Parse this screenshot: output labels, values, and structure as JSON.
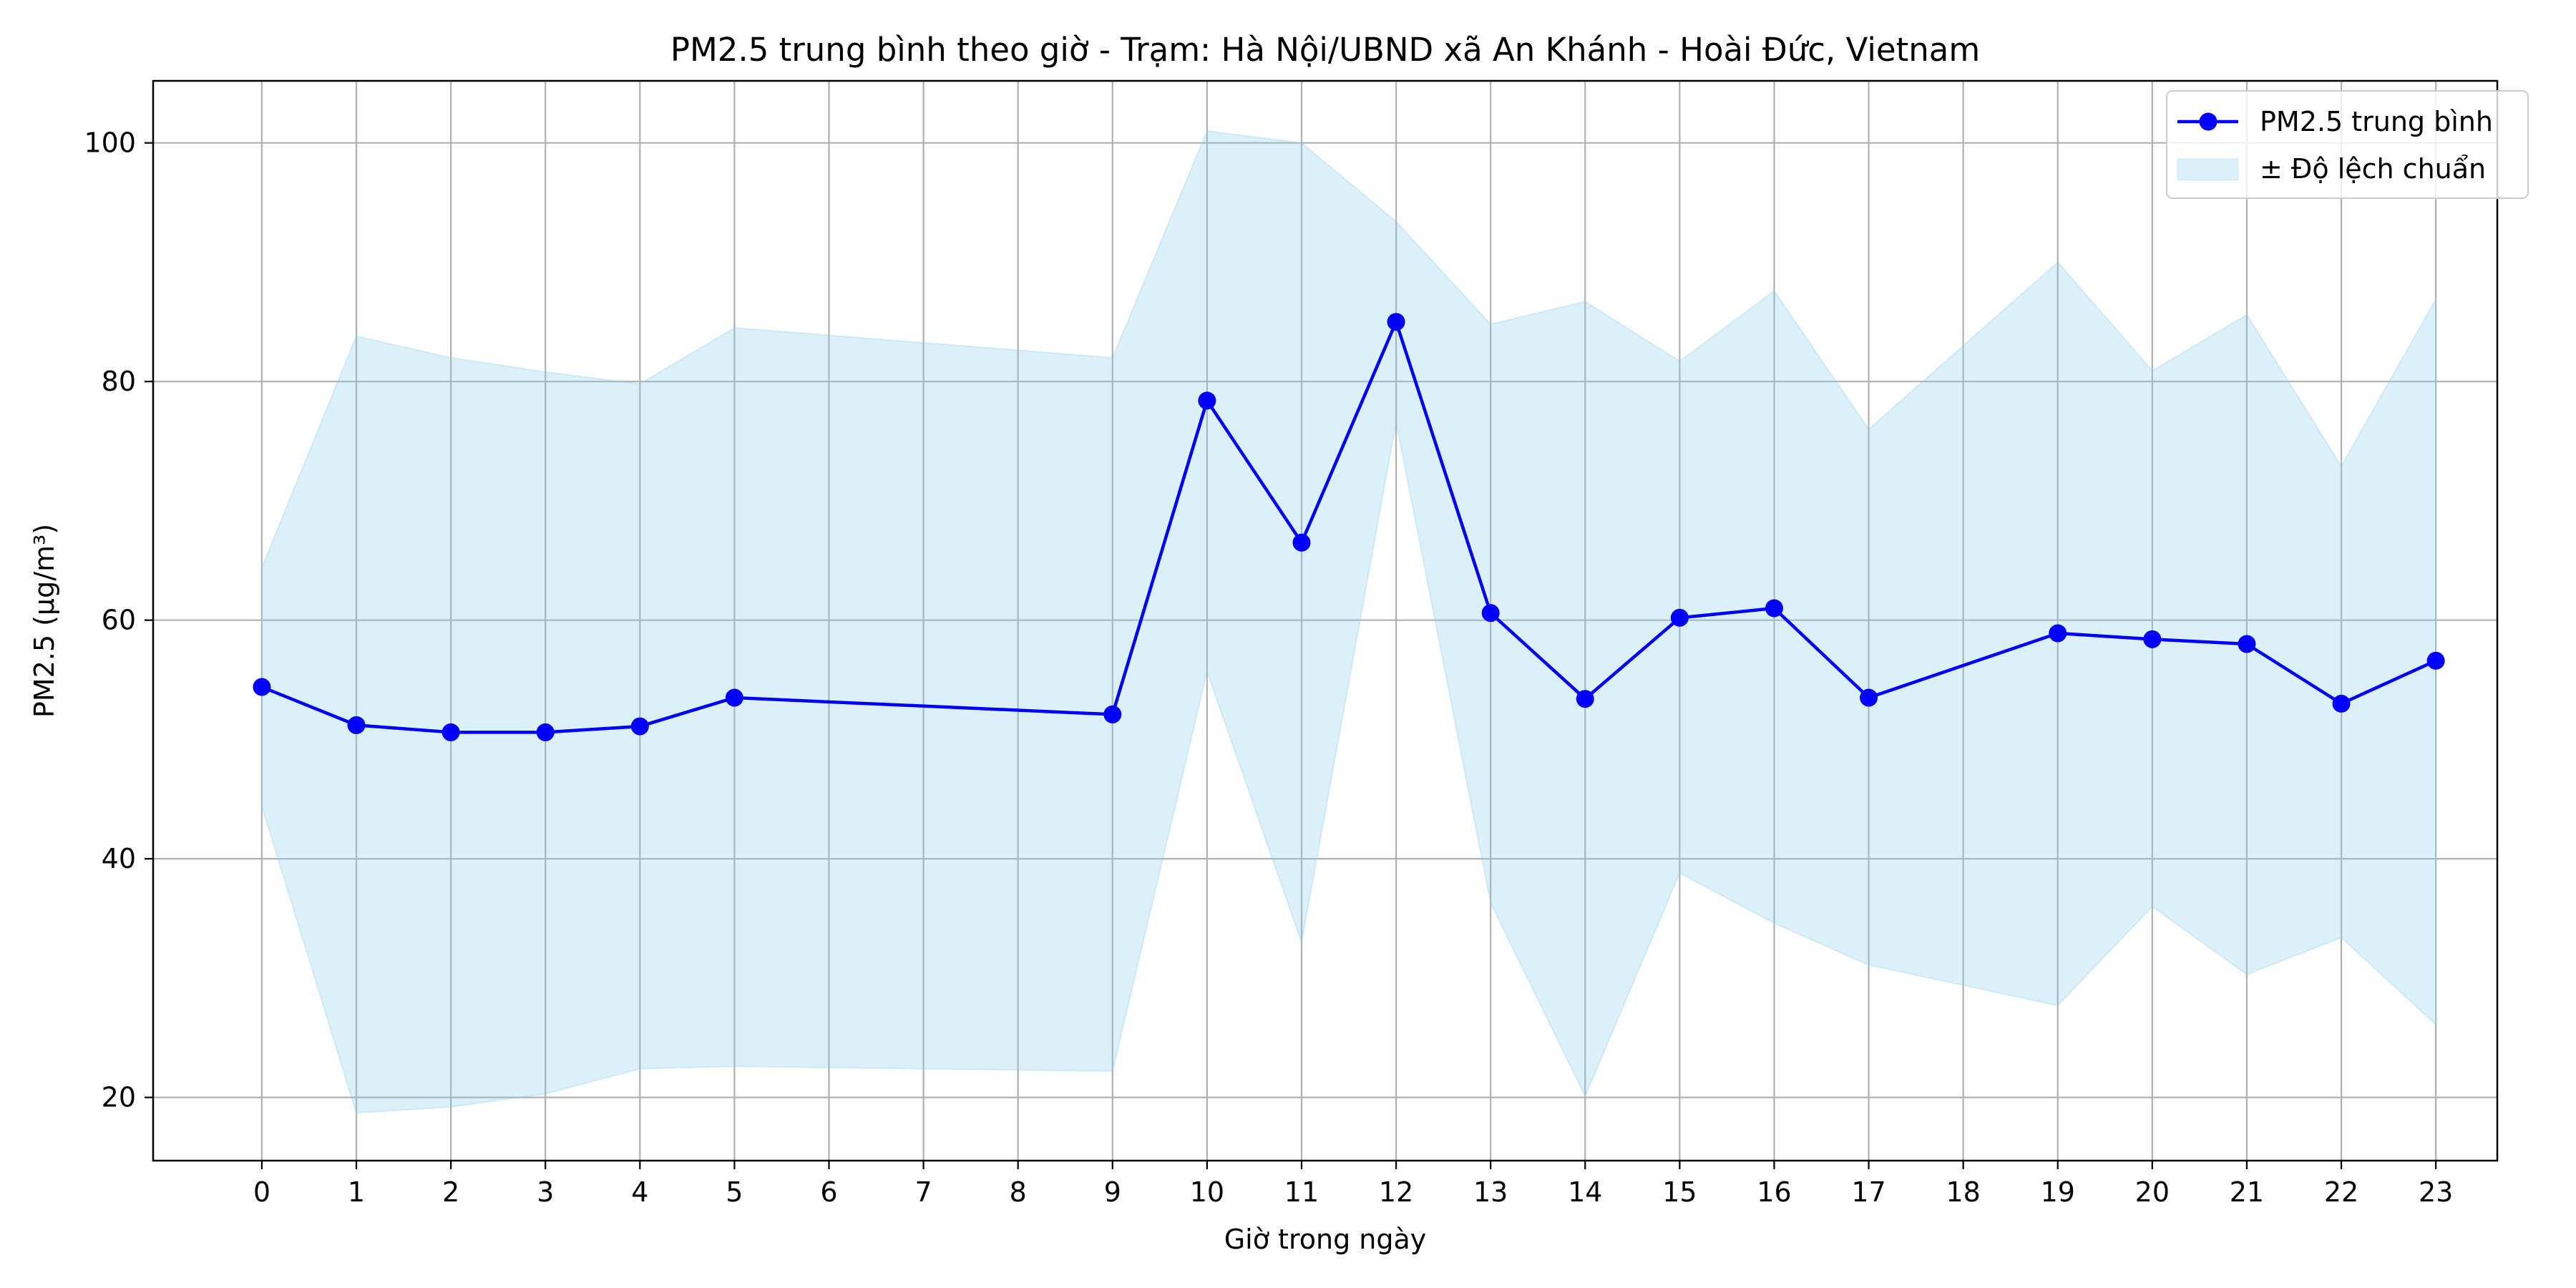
{
  "chart_data": {
    "type": "line",
    "title": "PM2.5 trung bình theo giờ - Trạm: Hà Nội/UBND xã An Khánh - Hoài Đức, Vietnam",
    "xlabel": "Giờ trong ngày",
    "ylabel": "PM2.5 (µg/m³)",
    "x_ticks": [
      0,
      1,
      2,
      3,
      4,
      5,
      6,
      7,
      8,
      9,
      10,
      11,
      12,
      13,
      14,
      15,
      16,
      17,
      18,
      19,
      20,
      21,
      22,
      23
    ],
    "y_ticks": [
      20,
      40,
      60,
      80,
      100
    ],
    "xlim": [
      -1.15,
      23.65
    ],
    "ylim": [
      14.7,
      105.2
    ],
    "grid": true,
    "legend_position": "top-right",
    "colors": {
      "line": "#0000ff",
      "band": "#87ceeb",
      "grid": "#b0b0b0"
    },
    "series": [
      {
        "name": "PM2.5 trung bình",
        "x": [
          0,
          1,
          2,
          3,
          4,
          5,
          9,
          10,
          11,
          12,
          13,
          14,
          15,
          16,
          17,
          19,
          20,
          21,
          22,
          23
        ],
        "values": [
          54.4,
          51.2,
          50.6,
          50.6,
          51.1,
          53.5,
          52.1,
          78.4,
          66.5,
          85.0,
          60.6,
          53.4,
          60.2,
          61.0,
          53.5,
          58.9,
          58.4,
          58.0,
          53.0,
          56.6
        ]
      },
      {
        "name": "± Độ lệch chuẩn",
        "x": [
          0,
          1,
          2,
          3,
          4,
          5,
          9,
          10,
          11,
          12,
          13,
          14,
          15,
          16,
          17,
          19,
          20,
          21,
          22,
          23
        ],
        "lower": [
          44.4,
          18.7,
          19.2,
          20.3,
          22.4,
          22.6,
          22.2,
          55.7,
          33.0,
          76.6,
          36.3,
          20.1,
          38.8,
          34.6,
          31.1,
          27.7,
          36.0,
          30.3,
          33.4,
          26.1
        ],
        "upper": [
          64.4,
          83.8,
          82.0,
          80.8,
          79.8,
          84.5,
          82.0,
          101.0,
          100.0,
          93.4,
          84.8,
          86.7,
          81.7,
          87.6,
          76.0,
          90.0,
          80.9,
          85.6,
          72.9,
          86.9
        ]
      }
    ]
  }
}
